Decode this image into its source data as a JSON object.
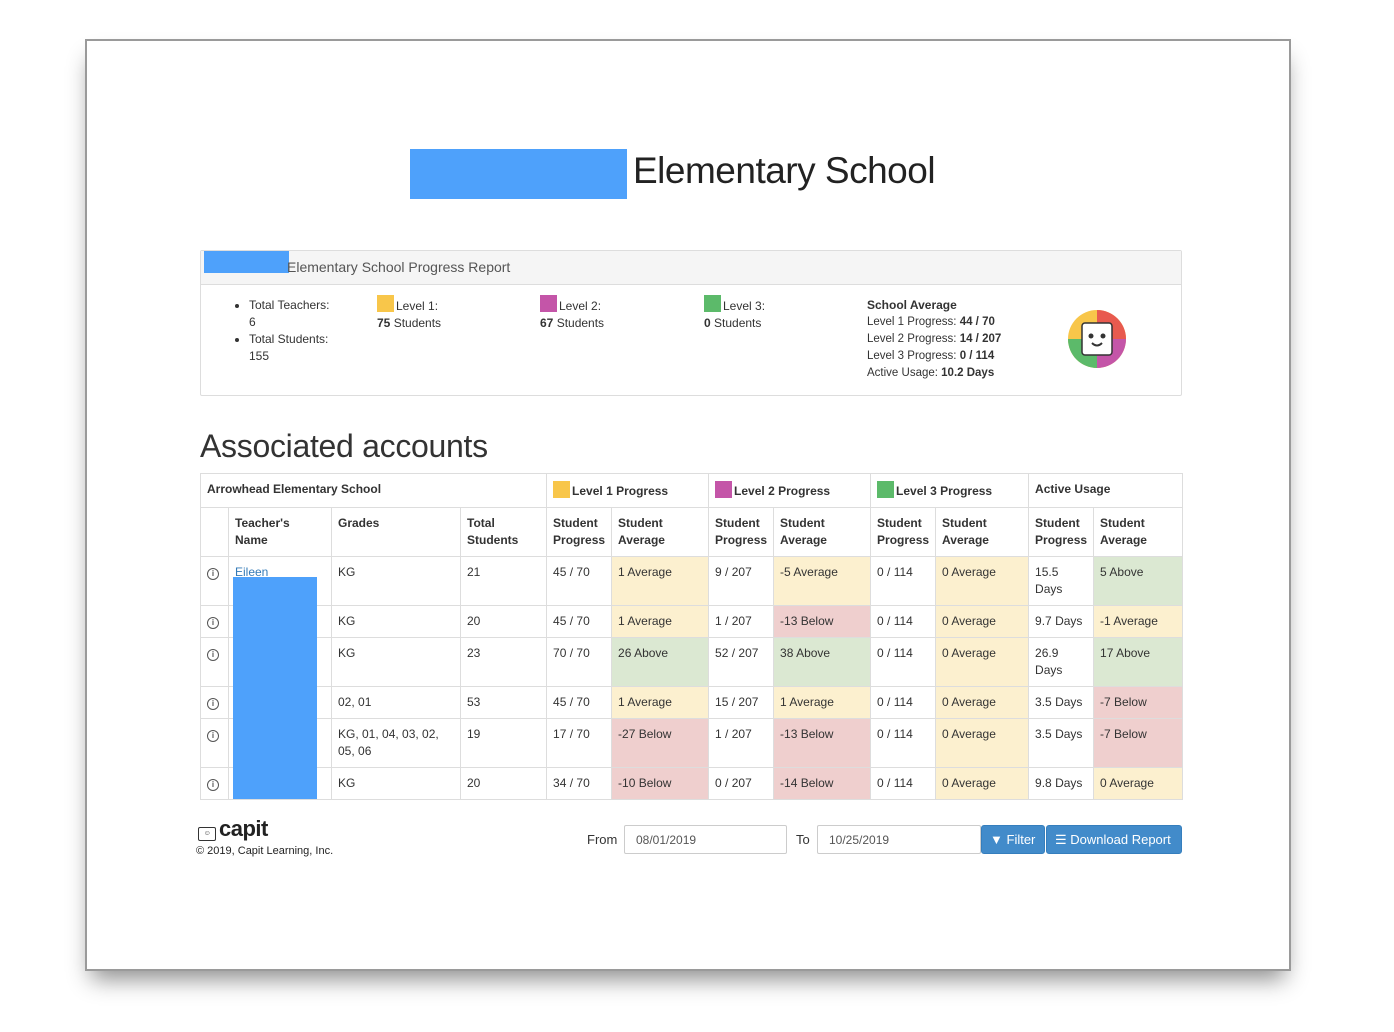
{
  "title": "Elementary School",
  "panel": {
    "heading": "Elementary School Progress Report",
    "total_teachers": "Total Teachers: 6",
    "total_students": "Total Students: 155",
    "levels": [
      {
        "label": "Level 1:",
        "count": "75",
        "suffix": " Students",
        "color": "#f8c64a"
      },
      {
        "label": "Level 2:",
        "count": "67",
        "suffix": " Students",
        "color": "#c455a8"
      },
      {
        "label": "Level 3:",
        "count": "0",
        "suffix": " Students",
        "color": "#5cba6a"
      }
    ],
    "school_average": {
      "heading": "School Average",
      "l1_label": "Level 1 Progress: ",
      "l1_value": "44 / 70",
      "l2_label": "Level 2 Progress: ",
      "l2_value": "14 / 207",
      "l3_label": "Level 3 Progress: ",
      "l3_value": "0 / 114",
      "usage_label": "Active Usage: ",
      "usage_value": "10.2 Days"
    }
  },
  "section_title": "Associated accounts",
  "table": {
    "school_name": "Arrowhead Elementary School",
    "groups": [
      "Level 1 Progress",
      "Level 2 Progress",
      "Level 3 Progress",
      "Active Usage"
    ],
    "group_colors": [
      "#f8c64a",
      "#c455a8",
      "#5cba6a"
    ],
    "columns": [
      "Teacher's Name",
      "Grades",
      "Total Students",
      "Student Progress",
      "Student Average",
      "Student Progress",
      "Student Average",
      "Student Progress",
      "Student Average",
      "Student Progress",
      "Student Average"
    ],
    "rows": [
      {
        "name": "Eileen",
        "grades": "KG",
        "total": "21",
        "l1p": "45 / 70",
        "l1a": "1 Average",
        "l2p": "9 / 207",
        "l2a": "-5 Average",
        "l3p": "0 / 114",
        "l3a": "0 Average",
        "aup": "15.5 Days",
        "aua": "5 Above"
      },
      {
        "name": "",
        "grades": "KG",
        "total": "20",
        "l1p": "45 / 70",
        "l1a": "1 Average",
        "l2p": "1 / 207",
        "l2a": "-13 Below",
        "l3p": "0 / 114",
        "l3a": "0 Average",
        "aup": "9.7 Days",
        "aua": "-1 Average"
      },
      {
        "name": "",
        "grades": "KG",
        "total": "23",
        "l1p": "70 / 70",
        "l1a": "26 Above",
        "l2p": "52 / 207",
        "l2a": "38 Above",
        "l3p": "0 / 114",
        "l3a": "0 Average",
        "aup": "26.9 Days",
        "aua": "17 Above"
      },
      {
        "name": "",
        "grades": "02, 01",
        "total": "53",
        "l1p": "45 / 70",
        "l1a": "1 Average",
        "l2p": "15 / 207",
        "l2a": "1 Average",
        "l3p": "0 / 114",
        "l3a": "0 Average",
        "aup": "3.5 Days",
        "aua": "-7 Below"
      },
      {
        "name": "",
        "grades": "KG, 01, 04, 03, 02, 05, 06",
        "total": "19",
        "l1p": "17 / 70",
        "l1a": "-27 Below",
        "l2p": "1 / 207",
        "l2a": "-13 Below",
        "l3p": "0 / 114",
        "l3a": "0 Average",
        "aup": "3.5 Days",
        "aua": "-7 Below"
      },
      {
        "name": "",
        "grades": "KG",
        "total": "20",
        "l1p": "34 / 70",
        "l1a": "-10 Below",
        "l2p": "0 / 207",
        "l2a": "-14 Below",
        "l3p": "0 / 114",
        "l3a": "0 Average",
        "aup": "9.8 Days",
        "aua": "0 Average"
      }
    ]
  },
  "footer": {
    "logo_text": "capit",
    "copyright": "© 2019, Capit Learning, Inc.",
    "from_label": "From",
    "from_value": "08/01/2019",
    "to_label": "To",
    "to_value": "10/25/2019",
    "filter_label": "Filter",
    "download_label": "Download Report"
  },
  "colors": {
    "accent": "#428bca",
    "redaction": "#4ea1fb",
    "above": "#dbe8d2",
    "average": "#fcf0cf",
    "below": "#efcfce"
  }
}
